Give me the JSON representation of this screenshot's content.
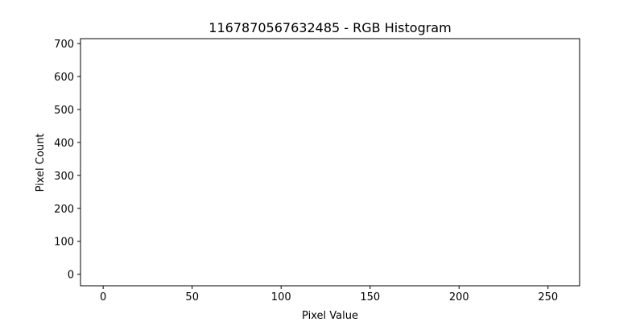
{
  "chart_data": {
    "type": "bar",
    "title": "1167870567632485 - RGB Histogram",
    "xlabel": "Pixel Value",
    "ylabel": "Pixel Count",
    "xlim": [
      -12.75,
      267.75
    ],
    "ylim": [
      -35,
      715
    ],
    "xticks": [
      0,
      50,
      100,
      150,
      200,
      250
    ],
    "yticks": [
      0,
      100,
      200,
      300,
      400,
      500,
      600,
      700
    ],
    "grid": false,
    "series": []
  }
}
